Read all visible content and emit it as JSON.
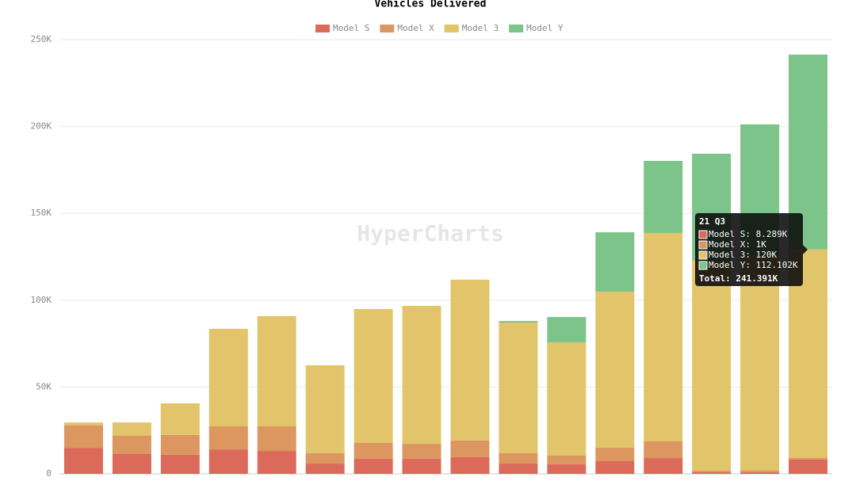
{
  "chart_data": {
    "type": "stacked-bar",
    "title": "Vehicles Delivered",
    "watermark": "HyperCharts",
    "categories": [
      null,
      null,
      null,
      null,
      null,
      null,
      null,
      null,
      null,
      null,
      null,
      null,
      null,
      null,
      null,
      "21 Q3"
    ],
    "series": [
      {
        "name": "Model S",
        "color": "#dc6a5a",
        "values": [
          15000,
          11400,
          11000,
          14100,
          13200,
          5900,
          8700,
          8700,
          9600,
          5900,
          5500,
          7300,
          9100,
          900,
          1000,
          8289
        ]
      },
      {
        "name": "Model X",
        "color": "#dc9660",
        "values": [
          13000,
          10500,
          11400,
          13300,
          14200,
          6000,
          9100,
          8600,
          9600,
          6000,
          5000,
          7800,
          9600,
          900,
          1000,
          1000
        ]
      },
      {
        "name": "Model 3",
        "color": "#e2c46a",
        "values": [
          1600,
          7700,
          18200,
          56100,
          63400,
          50600,
          77100,
          79400,
          92600,
          75200,
          65200,
          89800,
          120000,
          121000,
          124000,
          120000
        ]
      },
      {
        "name": "Model Y",
        "color": "#7cc48a",
        "values": [
          0,
          0,
          0,
          0,
          0,
          0,
          0,
          0,
          0,
          900,
          14600,
          34200,
          41500,
          61500,
          75200,
          112102
        ]
      }
    ],
    "ylim": [
      0,
      250000
    ],
    "yticks": [
      0,
      {
        "value": 50000,
        "label": "50K"
      },
      {
        "value": 100000,
        "label": "100K"
      },
      {
        "value": 150000,
        "label": "150K"
      },
      {
        "value": 200000,
        "label": "200K"
      },
      {
        "value": 250000,
        "label": "250K"
      }
    ],
    "grid": true,
    "legend": "top",
    "tooltip": {
      "lines": [
        "Model S: 8.289K",
        "Model X: 1K",
        "Model 3: 120K",
        "Model Y: 112.102K"
      ],
      "total": "Total: 241.391K"
    }
  }
}
